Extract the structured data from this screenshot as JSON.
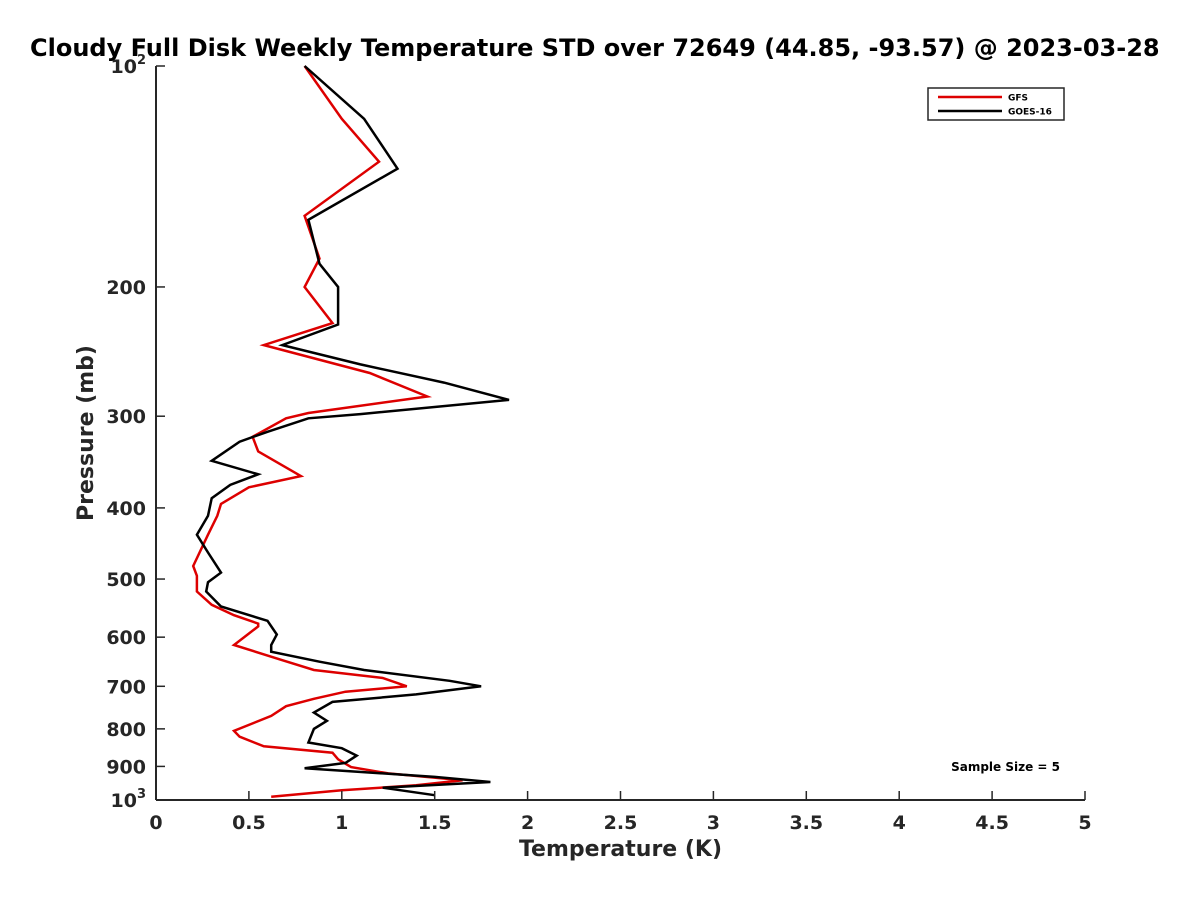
{
  "chart_data": {
    "type": "line",
    "title": "Cloudy Full Disk Weekly Temperature STD over 72649 (44.85, -93.57) @ 2023-03-28",
    "xlabel": "Temperature (K)",
    "ylabel": "Pressure (mb)",
    "xlim": [
      0,
      5
    ],
    "ylim": [
      100,
      1000
    ],
    "yscale": "log",
    "y_reversed": true,
    "x_ticks": [
      "0",
      "0.5",
      "1",
      "1.5",
      "2",
      "2.5",
      "3",
      "3.5",
      "4",
      "4.5",
      "5"
    ],
    "y_ticks": [
      {
        "value": 100,
        "label": "10",
        "sup": "2"
      },
      {
        "value": 200,
        "label": "200",
        "sup": ""
      },
      {
        "value": 300,
        "label": "300",
        "sup": ""
      },
      {
        "value": 400,
        "label": "400",
        "sup": ""
      },
      {
        "value": 500,
        "label": "500",
        "sup": ""
      },
      {
        "value": 600,
        "label": "600",
        "sup": ""
      },
      {
        "value": 700,
        "label": "700",
        "sup": ""
      },
      {
        "value": 800,
        "label": "800",
        "sup": ""
      },
      {
        "value": 900,
        "label": "900",
        "sup": ""
      },
      {
        "value": 1000,
        "label": "10",
        "sup": "3"
      }
    ],
    "legend_position": "top-right",
    "annotation": "Sample Size = 5",
    "grid": false,
    "series": [
      {
        "name": "GFS",
        "color": "#dd0000",
        "points": [
          [
            0.8,
            100
          ],
          [
            1.0,
            118
          ],
          [
            1.2,
            135
          ],
          [
            0.8,
            160
          ],
          [
            0.88,
            183
          ],
          [
            0.8,
            200
          ],
          [
            0.95,
            224
          ],
          [
            0.58,
            240
          ],
          [
            1.15,
            262
          ],
          [
            1.46,
            282
          ],
          [
            0.82,
            297
          ],
          [
            0.7,
            302
          ],
          [
            0.52,
            320
          ],
          [
            0.55,
            335
          ],
          [
            0.78,
            362
          ],
          [
            0.5,
            375
          ],
          [
            0.35,
            395
          ],
          [
            0.33,
            410
          ],
          [
            0.28,
            435
          ],
          [
            0.2,
            480
          ],
          [
            0.22,
            495
          ],
          [
            0.22,
            520
          ],
          [
            0.3,
            542
          ],
          [
            0.42,
            560
          ],
          [
            0.55,
            575
          ],
          [
            0.55,
            580
          ],
          [
            0.42,
            615
          ],
          [
            0.68,
            645
          ],
          [
            0.85,
            665
          ],
          [
            1.22,
            682
          ],
          [
            1.35,
            700
          ],
          [
            1.02,
            712
          ],
          [
            0.85,
            728
          ],
          [
            0.7,
            745
          ],
          [
            0.62,
            768
          ],
          [
            0.42,
            805
          ],
          [
            0.45,
            820
          ],
          [
            0.58,
            845
          ],
          [
            0.95,
            862
          ],
          [
            0.98,
            880
          ],
          [
            1.05,
            902
          ],
          [
            1.25,
            920
          ],
          [
            1.65,
            940
          ],
          [
            1.4,
            955
          ],
          [
            1.0,
            970
          ],
          [
            0.62,
            990
          ]
        ]
      },
      {
        "name": "GOES-16",
        "color": "#000000",
        "points": [
          [
            0.8,
            100
          ],
          [
            1.12,
            118
          ],
          [
            1.3,
            138
          ],
          [
            0.82,
            162
          ],
          [
            0.88,
            186
          ],
          [
            0.98,
            200
          ],
          [
            0.98,
            225
          ],
          [
            0.68,
            240
          ],
          [
            1.1,
            255
          ],
          [
            1.55,
            270
          ],
          [
            1.9,
            285
          ],
          [
            1.1,
            298
          ],
          [
            0.82,
            302
          ],
          [
            0.6,
            315
          ],
          [
            0.45,
            325
          ],
          [
            0.3,
            345
          ],
          [
            0.55,
            360
          ],
          [
            0.4,
            372
          ],
          [
            0.3,
            388
          ],
          [
            0.28,
            410
          ],
          [
            0.22,
            435
          ],
          [
            0.28,
            460
          ],
          [
            0.35,
            490
          ],
          [
            0.28,
            505
          ],
          [
            0.27,
            520
          ],
          [
            0.35,
            545
          ],
          [
            0.6,
            570
          ],
          [
            0.65,
            595
          ],
          [
            0.62,
            615
          ],
          [
            0.62,
            628
          ],
          [
            0.88,
            648
          ],
          [
            1.12,
            665
          ],
          [
            1.58,
            688
          ],
          [
            1.75,
            700
          ],
          [
            1.4,
            718
          ],
          [
            0.95,
            735
          ],
          [
            0.85,
            760
          ],
          [
            0.92,
            780
          ],
          [
            0.85,
            800
          ],
          [
            0.82,
            835
          ],
          [
            1.0,
            850
          ],
          [
            1.08,
            870
          ],
          [
            1.02,
            890
          ],
          [
            0.8,
            905
          ],
          [
            1.5,
            930
          ],
          [
            1.8,
            945
          ],
          [
            1.22,
            962
          ],
          [
            1.5,
            985
          ]
        ]
      }
    ]
  }
}
